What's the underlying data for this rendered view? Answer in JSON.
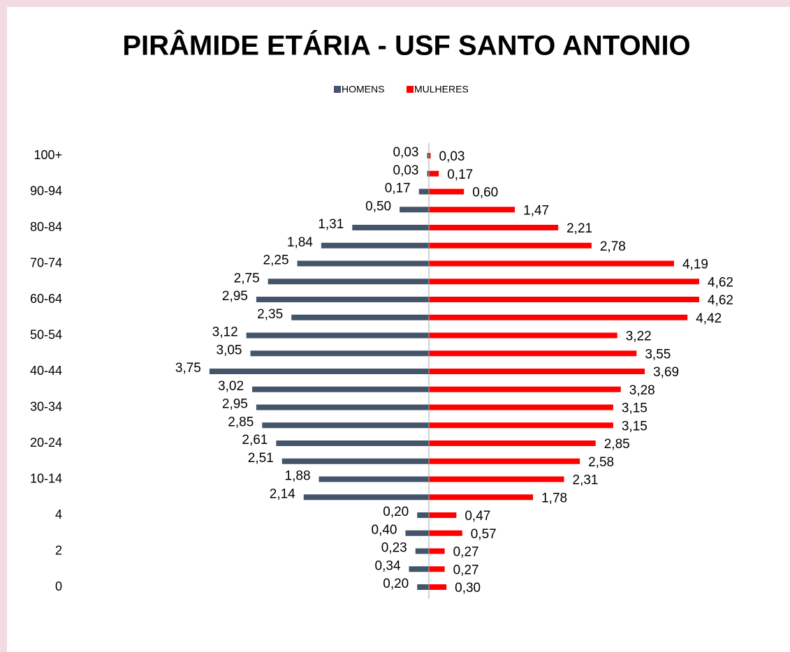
{
  "chart_data": {
    "type": "pyramid",
    "title": "PIRÂMIDE ETÁRIA - USF SANTO ANTONIO",
    "categories": [
      "100+",
      null,
      "90-94",
      null,
      "80-84",
      null,
      "70-74",
      null,
      "60-64",
      null,
      "50-54",
      null,
      "40-44",
      null,
      "30-34",
      null,
      "20-24",
      null,
      "10-14",
      null,
      "4",
      null,
      "2",
      null,
      "0"
    ],
    "series": [
      {
        "name": "HOMENS",
        "color": "#44546a",
        "values": [
          0.03,
          0.03,
          0.17,
          0.5,
          1.31,
          1.84,
          2.25,
          2.75,
          2.95,
          2.35,
          3.12,
          3.05,
          3.75,
          3.02,
          2.95,
          2.85,
          2.61,
          2.51,
          1.88,
          2.14,
          0.2,
          0.4,
          0.23,
          0.34,
          0.2
        ],
        "value_labels": [
          "0,03",
          "0,03",
          "0,17",
          "0,50",
          "1,31",
          "1,84",
          "2,25",
          "2,75",
          "2,95",
          "2,35",
          "3,12",
          "3,05",
          "3,75",
          "3,02",
          "2,95",
          "2,85",
          "2,61",
          "2,51",
          "1,88",
          "2,14",
          "0,20",
          "0,40",
          "0,23",
          "0,34",
          "0,20"
        ]
      },
      {
        "name": "MULHERES",
        "color": "#ff0000",
        "values": [
          0.03,
          0.17,
          0.6,
          1.47,
          2.21,
          2.78,
          4.19,
          4.62,
          4.62,
          4.42,
          3.22,
          3.55,
          3.69,
          3.28,
          3.15,
          3.15,
          2.85,
          2.58,
          2.31,
          1.78,
          0.47,
          0.57,
          0.27,
          0.27,
          0.3
        ],
        "value_labels": [
          "0,03",
          "0,17",
          "0,60",
          "1,47",
          "2,21",
          "2,78",
          "4,19",
          "4,62",
          "4,62",
          "4,42",
          "3,22",
          "3,55",
          "3,69",
          "3,28",
          "3,15",
          "3,15",
          "2,85",
          "2,58",
          "2,31",
          "1,78",
          "0,47",
          "0,57",
          "0,27",
          "0,27",
          "0,30"
        ]
      }
    ]
  }
}
